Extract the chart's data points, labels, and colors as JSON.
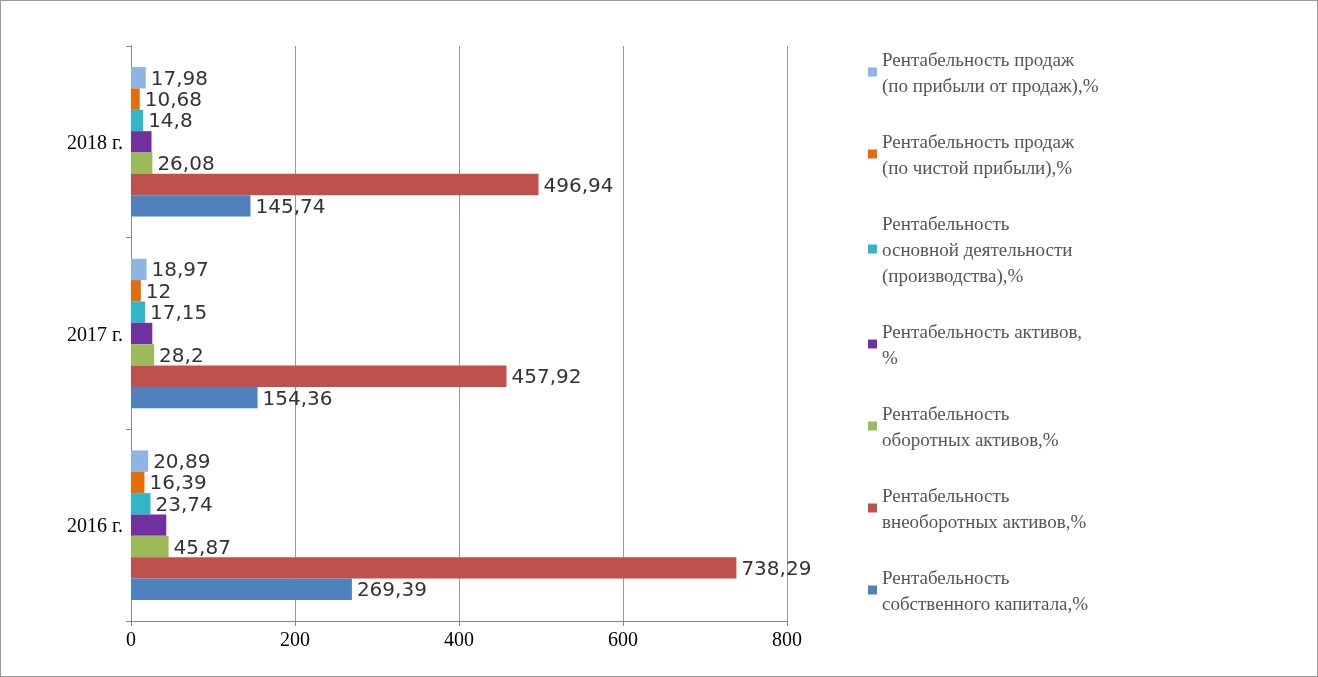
{
  "chart_data": {
    "type": "bar",
    "orientation": "horizontal",
    "categories": [
      "2018 г.",
      "2017 г.",
      "2016 г."
    ],
    "series": [
      {
        "name": "Рентабельность продаж (по прибыли от продаж),%",
        "color": "#8eb4e3",
        "values": [
          17.98,
          18.97,
          20.89
        ],
        "value_labels": [
          "17,98",
          "18,97",
          "20,89"
        ]
      },
      {
        "name": "Рентабельность продаж (по чистой прибыли),%",
        "color": "#e46c0a",
        "values": [
          10.68,
          12,
          16.39
        ],
        "value_labels": [
          "10,68",
          "12",
          "16,39"
        ]
      },
      {
        "name": "Рентабельность основной деятельности (производства),%",
        "color": "#31b6c8",
        "values": [
          14.8,
          17.15,
          23.74
        ],
        "value_labels": [
          "14,8",
          "17,15",
          "23,74"
        ]
      },
      {
        "name": "Рентабельность активов,%",
        "color": "#7030a0",
        "values": [
          25,
          26,
          43
        ]
      },
      {
        "name": "Рентабельность оборотных активов,%",
        "color": "#9bbb59",
        "values": [
          26.08,
          28.2,
          45.87
        ],
        "value_labels": [
          "26,08",
          "28,2",
          "45,87"
        ]
      },
      {
        "name": "Рентабельность внеоборотных активов,%",
        "color": "#c0504d",
        "values": [
          496.94,
          457.92,
          738.29
        ],
        "value_labels": [
          "496,94",
          "457,92",
          "738,29"
        ]
      },
      {
        "name": "Рентабельность собственного капитала,%",
        "color": "#4f81bd",
        "values": [
          145.74,
          154.36,
          269.39
        ],
        "value_labels": [
          "145,74",
          "154,36",
          "269,39"
        ]
      }
    ],
    "xlim": [
      0,
      800
    ],
    "xticks": [
      0,
      200,
      400,
      600,
      800
    ],
    "grid": "x",
    "legend": "right"
  }
}
